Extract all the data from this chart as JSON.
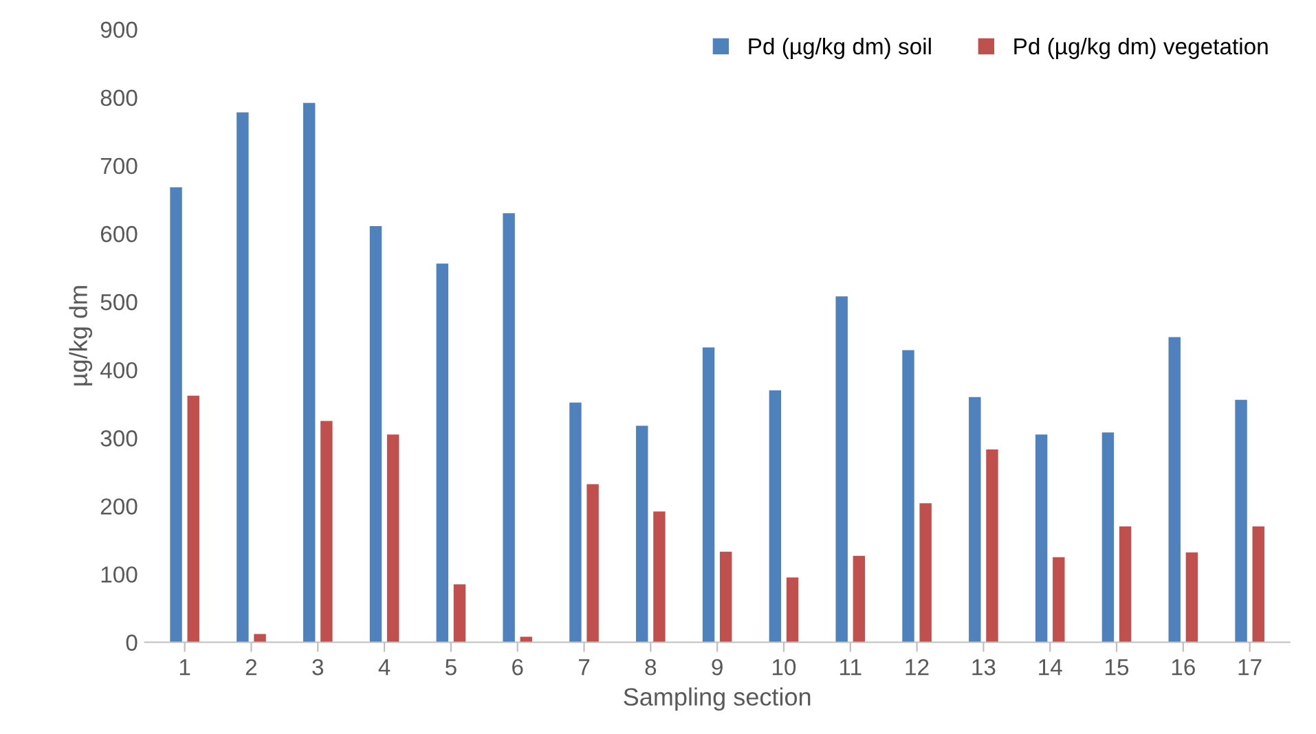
{
  "chart_data": {
    "type": "bar",
    "xlabel": "Sampling section",
    "ylabel": "µg/kg dm",
    "categories": [
      "1",
      "2",
      "3",
      "4",
      "5",
      "6",
      "7",
      "8",
      "9",
      "10",
      "11",
      "12",
      "13",
      "14",
      "15",
      "16",
      "17"
    ],
    "series": [
      {
        "name": "Pd (µg/kg dm) soil",
        "color": "#4f81bd",
        "values": [
          668,
          778,
          792,
          611,
          556,
          630,
          352,
          318,
          433,
          370,
          508,
          429,
          360,
          305,
          308,
          448,
          356
        ]
      },
      {
        "name": "Pd (µg/kg dm) vegetation",
        "color": "#c0504d",
        "values": [
          362,
          12,
          325,
          305,
          85,
          8,
          232,
          192,
          133,
          95,
          127,
          204,
          283,
          125,
          170,
          132,
          170
        ]
      }
    ],
    "ylim": [
      0,
      900
    ],
    "yticks": [
      0,
      100,
      200,
      300,
      400,
      500,
      600,
      700,
      800,
      900
    ],
    "legend": "top right"
  }
}
